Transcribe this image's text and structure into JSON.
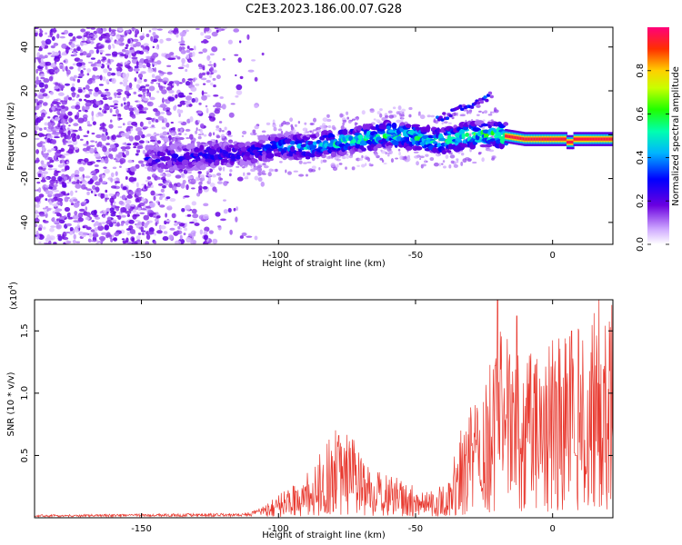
{
  "title": "C2E3.2023.186.00.07.G28",
  "chart_data": [
    {
      "type": "heatmap",
      "xlabel": "Height of straight line (km)",
      "ylabel": "Frequency (Hz)",
      "xlim": [
        -189,
        22
      ],
      "ylim": [
        -50,
        49
      ],
      "x_ticks": [
        -150,
        -100,
        -50,
        0
      ],
      "y_ticks": [
        -40,
        -20,
        0,
        20,
        40
      ],
      "colorbar": {
        "label": "Normalized spectral amplitude",
        "range": [
          0,
          1
        ],
        "ticks": [
          0.0,
          0.2,
          0.4,
          0.6,
          0.8
        ],
        "colormap": "rainbow (purple-blue-cyan-green-yellow-red-magenta)"
      },
      "ridge": [
        {
          "x": -145,
          "freq": -11,
          "amp": 0.25
        },
        {
          "x": -130,
          "freq": -10,
          "amp": 0.3
        },
        {
          "x": -110,
          "freq": -8,
          "amp": 0.3
        },
        {
          "x": -100,
          "freq": -5,
          "amp": 0.35
        },
        {
          "x": -90,
          "freq": -6,
          "amp": 0.45
        },
        {
          "x": -80,
          "freq": -4,
          "amp": 0.5
        },
        {
          "x": -70,
          "freq": -2,
          "amp": 0.55
        },
        {
          "x": -60,
          "freq": 0,
          "amp": 0.55
        },
        {
          "x": -50,
          "freq": -1,
          "amp": 0.55
        },
        {
          "x": -40,
          "freq": -3,
          "amp": 0.55
        },
        {
          "x": -30,
          "freq": 0,
          "amp": 0.6
        },
        {
          "x": -25,
          "freq": 18,
          "amp": 0.3
        },
        {
          "x": -20,
          "freq": 0,
          "amp": 0.6
        },
        {
          "x": -10,
          "freq": -2,
          "amp": 0.95
        },
        {
          "x": 0,
          "freq": -2,
          "amp": 0.95
        },
        {
          "x": 10,
          "freq": -2,
          "amp": 0.95
        },
        {
          "x": 22,
          "freq": -2,
          "amp": 0.95
        }
      ]
    },
    {
      "type": "line",
      "xlabel": "Height of straight line (km)",
      "ylabel": "SNR (10 * v/v)",
      "y_scale_label": "(x10",
      "y_scale_exponent": "4",
      "y_scale_close": ")",
      "xlim": [
        -189,
        22
      ],
      "ylim": [
        0,
        1.75
      ],
      "x_ticks": [
        -150,
        -100,
        -50,
        0
      ],
      "y_ticks": [
        0.5,
        1.0,
        1.5
      ],
      "y_tick_labels": [
        "0.5",
        "1.0",
        "1.5"
      ],
      "series": [
        {
          "color": "#e8392f",
          "envelope": [
            {
              "x": -189,
              "y": 0.02
            },
            {
              "x": -120,
              "y": 0.03
            },
            {
              "x": -110,
              "y": 0.04
            },
            {
              "x": -100,
              "y": 0.12
            },
            {
              "x": -90,
              "y": 0.22
            },
            {
              "x": -85,
              "y": 0.35
            },
            {
              "x": -80,
              "y": 0.45
            },
            {
              "x": -75,
              "y": 0.48
            },
            {
              "x": -70,
              "y": 0.38
            },
            {
              "x": -65,
              "y": 0.25
            },
            {
              "x": -60,
              "y": 0.22
            },
            {
              "x": -55,
              "y": 0.22
            },
            {
              "x": -50,
              "y": 0.16
            },
            {
              "x": -45,
              "y": 0.13
            },
            {
              "x": -40,
              "y": 0.2
            },
            {
              "x": -35,
              "y": 0.4
            },
            {
              "x": -30,
              "y": 0.58
            },
            {
              "x": -25,
              "y": 0.75
            },
            {
              "x": -20,
              "y": 1.0
            },
            {
              "x": -15,
              "y": 0.9
            },
            {
              "x": -10,
              "y": 0.85
            },
            {
              "x": -5,
              "y": 0.9
            },
            {
              "x": 0,
              "y": 0.95
            },
            {
              "x": 5,
              "y": 0.95
            },
            {
              "x": 10,
              "y": 1.05
            },
            {
              "x": 15,
              "y": 1.15
            },
            {
              "x": 22,
              "y": 1.22
            }
          ],
          "peaks": [
            {
              "x": -20,
              "y": 1.76
            },
            {
              "x": -13,
              "y": 1.62
            },
            {
              "x": -21,
              "y": 1.22
            },
            {
              "x": 7,
              "y": 1.5
            },
            {
              "x": -78,
              "y": 0.66
            },
            {
              "x": 8,
              "y": 0.52
            }
          ]
        }
      ]
    }
  ]
}
